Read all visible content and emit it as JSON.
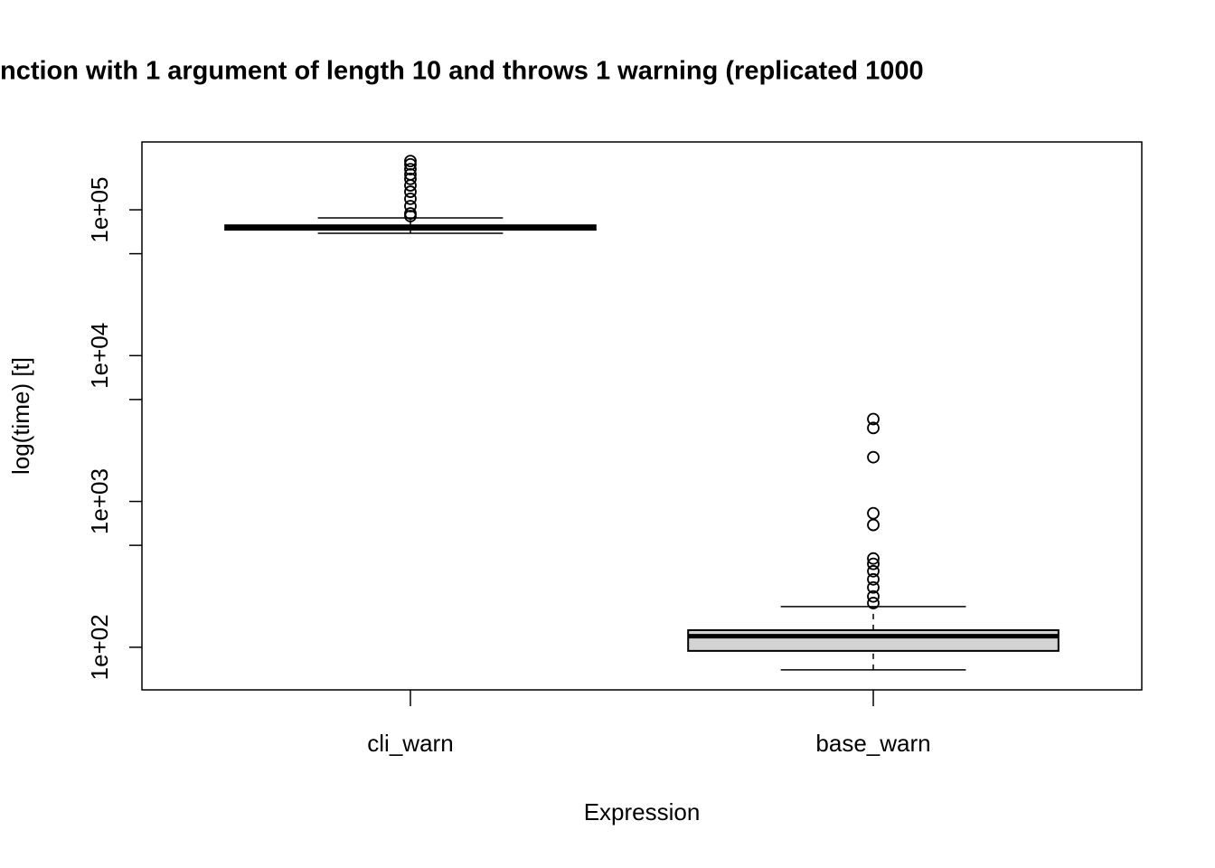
{
  "chart_data": {
    "type": "boxplot",
    "title": "nction with 1 argument of length 10 and throws 1 warning (replicated 1000",
    "x_label": "Expression",
    "y_label": "log(time) [t]",
    "categories": [
      "cli_warn",
      "base_warn"
    ],
    "min": [
      69000,
      70
    ],
    "q1": [
      73000,
      94.4
    ],
    "median": [
      75100,
      119
    ],
    "q3": [
      78300,
      131
    ],
    "max": [
      88000,
      190
    ],
    "outliers": [
      [
        216000,
        205000,
        190000,
        175000,
        163000,
        147000,
        133000,
        119000,
        106000,
        94400,
        90600
      ],
      [
        3670,
        3190,
        2010,
        830,
        690,
        406,
        373,
        332,
        292,
        257,
        223,
        201
      ]
    ],
    "color": "#d3d3d3",
    "log_y": true,
    "ylim": [
      51,
      292000
    ],
    "yticks": [
      {
        "value": 100,
        "label": "1e+02"
      },
      {
        "value": 1000,
        "label": "1e+03"
      },
      {
        "value": 10000,
        "label": "1e+04"
      },
      {
        "value": 100000,
        "label": "1e+05"
      }
    ],
    "yminor_ticks": [
      500,
      5000,
      50000
    ]
  }
}
